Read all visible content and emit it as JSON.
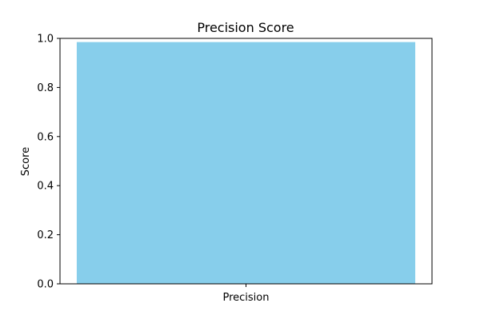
{
  "chart_data": {
    "type": "bar",
    "title": "Precision Score",
    "xlabel": "",
    "ylabel": "Score",
    "categories": [
      "Precision"
    ],
    "values": [
      0.985
    ],
    "ylim": [
      0,
      1.0
    ],
    "yticks": [
      "0.0",
      "0.2",
      "0.4",
      "0.6",
      "0.8",
      "1.0"
    ],
    "bar_color": "#87CEEB",
    "grid": false,
    "legend": "none"
  }
}
